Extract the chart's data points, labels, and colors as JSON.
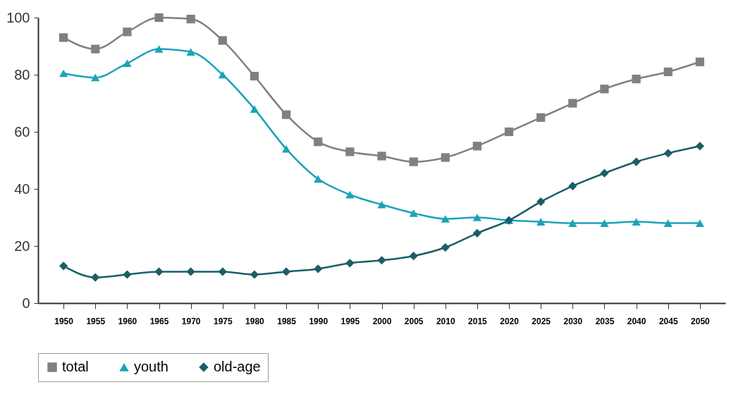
{
  "chart_data": {
    "type": "line",
    "categories": [
      "1950",
      "1955",
      "1960",
      "1965",
      "1970",
      "1975",
      "1980",
      "1985",
      "1990",
      "1995",
      "2000",
      "2005",
      "2010",
      "2015",
      "2020",
      "2025",
      "2030",
      "2035",
      "2040",
      "2045",
      "2050"
    ],
    "ylim": [
      0,
      100
    ],
    "yticks": [
      0,
      20,
      40,
      60,
      80,
      100
    ],
    "grid": false,
    "legend": "bottom",
    "line_style": "solid",
    "series": [
      {
        "name": "total",
        "color": "#808080",
        "marker": "square",
        "values": [
          93,
          89,
          95,
          100,
          99.5,
          92,
          79.5,
          66,
          56.5,
          53,
          51.5,
          49.5,
          51,
          55,
          60,
          65,
          70,
          75,
          78.5,
          81,
          84.5
        ]
      },
      {
        "name": "youth",
        "color": "#1ba3b8",
        "marker": "triangle",
        "values": [
          80.5,
          79,
          84,
          89,
          88,
          80,
          68,
          54,
          43.5,
          38,
          34.5,
          31.5,
          29.5,
          30,
          29,
          28.5,
          28,
          28,
          28.5,
          28,
          28
        ]
      },
      {
        "name": "old-age",
        "color": "#1a5e66",
        "marker": "diamond",
        "values": [
          13,
          9,
          10,
          11,
          11,
          11,
          10,
          11,
          12,
          14,
          15,
          16.5,
          19.5,
          24.5,
          29,
          35.5,
          41,
          45.5,
          49.5,
          52.5,
          55
        ]
      }
    ]
  }
}
